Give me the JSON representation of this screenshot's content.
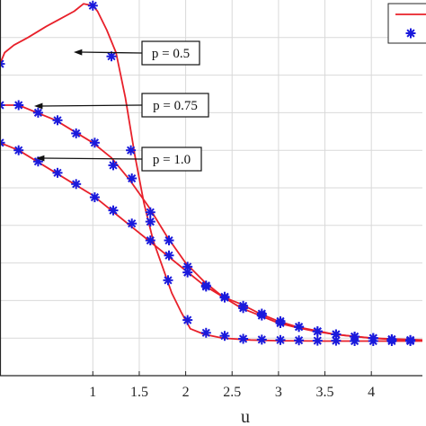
{
  "chart_data": {
    "type": "line",
    "xlabel": "u",
    "ylabel": "",
    "xlim": [
      0.0,
      4.55
    ],
    "ylim": [
      0.0,
      1.0
    ],
    "xticks": [
      1,
      1.5,
      2,
      2.5,
      3,
      3.5,
      4
    ],
    "xtick_labels": [
      "1",
      "1.5",
      "2",
      "2.5",
      "3",
      "3.5",
      "4"
    ],
    "grid": true,
    "legend_position": "top-right",
    "colors": {
      "line": "#e8202a",
      "marker": "#1a1adc",
      "grid": "#d9d9d9",
      "axis": "#262626"
    },
    "series": [
      {
        "label": "p = 0.5",
        "line": [
          [
            0.0,
            0.83
          ],
          [
            0.05,
            0.86
          ],
          [
            0.15,
            0.88
          ],
          [
            0.3,
            0.9
          ],
          [
            0.5,
            0.93
          ],
          [
            0.65,
            0.95
          ],
          [
            0.8,
            0.97
          ],
          [
            0.9,
            0.99
          ],
          [
            1.0,
            0.985
          ],
          [
            1.05,
            0.97
          ],
          [
            1.15,
            0.92
          ],
          [
            1.25,
            0.86
          ],
          [
            1.35,
            0.74
          ],
          [
            1.45,
            0.59
          ],
          [
            1.55,
            0.46
          ],
          [
            1.65,
            0.36
          ],
          [
            1.75,
            0.29
          ],
          [
            1.85,
            0.22
          ],
          [
            1.95,
            0.17
          ],
          [
            2.05,
            0.125
          ],
          [
            2.2,
            0.11
          ],
          [
            2.4,
            0.1
          ],
          [
            2.7,
            0.095
          ],
          [
            3.0,
            0.093
          ],
          [
            3.5,
            0.092
          ],
          [
            4.0,
            0.092
          ],
          [
            4.55,
            0.092
          ]
        ],
        "markers": [
          [
            0.0,
            0.83
          ],
          [
            1.0,
            0.985
          ],
          [
            1.2,
            0.85
          ],
          [
            1.41,
            0.6
          ],
          [
            1.62,
            0.41
          ],
          [
            1.81,
            0.254
          ],
          [
            2.02,
            0.148
          ],
          [
            2.22,
            0.114
          ],
          [
            2.42,
            0.106
          ],
          [
            2.62,
            0.098
          ],
          [
            2.82,
            0.096
          ],
          [
            3.02,
            0.095
          ],
          [
            3.22,
            0.094
          ],
          [
            3.42,
            0.093
          ],
          [
            3.62,
            0.093
          ],
          [
            3.82,
            0.092
          ],
          [
            4.02,
            0.092
          ],
          [
            4.22,
            0.092
          ],
          [
            4.42,
            0.092
          ]
        ]
      },
      {
        "label": "p = 0.75",
        "line": [
          [
            0.0,
            0.72
          ],
          [
            0.2,
            0.72
          ],
          [
            0.4,
            0.7
          ],
          [
            0.6,
            0.68
          ],
          [
            0.8,
            0.65
          ],
          [
            1.0,
            0.62
          ],
          [
            1.2,
            0.58
          ],
          [
            1.4,
            0.52
          ],
          [
            1.6,
            0.45
          ],
          [
            1.8,
            0.37
          ],
          [
            2.0,
            0.3
          ],
          [
            2.2,
            0.25
          ],
          [
            2.4,
            0.21
          ],
          [
            2.6,
            0.18
          ],
          [
            2.8,
            0.16
          ],
          [
            3.0,
            0.14
          ],
          [
            3.2,
            0.128
          ],
          [
            3.4,
            0.118
          ],
          [
            3.6,
            0.11
          ],
          [
            3.8,
            0.105
          ],
          [
            4.0,
            0.1
          ],
          [
            4.2,
            0.098
          ],
          [
            4.55,
            0.095
          ]
        ],
        "markers": [
          [
            0.0,
            0.72
          ],
          [
            0.2,
            0.72
          ],
          [
            0.41,
            0.7
          ],
          [
            0.62,
            0.68
          ],
          [
            0.82,
            0.645
          ],
          [
            1.02,
            0.62
          ],
          [
            1.22,
            0.56
          ],
          [
            1.42,
            0.525
          ],
          [
            1.62,
            0.435
          ],
          [
            1.82,
            0.36
          ],
          [
            2.02,
            0.29
          ],
          [
            2.22,
            0.24
          ],
          [
            2.42,
            0.21
          ],
          [
            2.62,
            0.18
          ],
          [
            2.82,
            0.16
          ],
          [
            3.02,
            0.14
          ],
          [
            3.22,
            0.13
          ],
          [
            3.42,
            0.118
          ],
          [
            3.62,
            0.11
          ],
          [
            3.82,
            0.104
          ],
          [
            4.02,
            0.1
          ],
          [
            4.22,
            0.097
          ],
          [
            4.42,
            0.095
          ]
        ]
      },
      {
        "label": "p = 1.0",
        "line": [
          [
            0.0,
            0.62
          ],
          [
            0.2,
            0.6
          ],
          [
            0.4,
            0.57
          ],
          [
            0.6,
            0.54
          ],
          [
            0.8,
            0.51
          ],
          [
            1.0,
            0.48
          ],
          [
            1.2,
            0.44
          ],
          [
            1.4,
            0.4
          ],
          [
            1.6,
            0.36
          ],
          [
            1.8,
            0.32
          ],
          [
            2.0,
            0.28
          ],
          [
            2.2,
            0.24
          ],
          [
            2.4,
            0.21
          ],
          [
            2.6,
            0.19
          ],
          [
            2.8,
            0.165
          ],
          [
            3.0,
            0.145
          ],
          [
            3.2,
            0.13
          ],
          [
            3.4,
            0.12
          ],
          [
            3.6,
            0.11
          ],
          [
            3.8,
            0.105
          ],
          [
            4.0,
            0.1
          ],
          [
            4.2,
            0.097
          ],
          [
            4.55,
            0.094
          ]
        ],
        "markers": [
          [
            0.0,
            0.62
          ],
          [
            0.2,
            0.6
          ],
          [
            0.41,
            0.57
          ],
          [
            0.62,
            0.54
          ],
          [
            0.82,
            0.51
          ],
          [
            1.02,
            0.475
          ],
          [
            1.22,
            0.44
          ],
          [
            1.42,
            0.405
          ],
          [
            1.62,
            0.36
          ],
          [
            1.82,
            0.32
          ],
          [
            2.02,
            0.275
          ],
          [
            2.22,
            0.237
          ],
          [
            2.42,
            0.208
          ],
          [
            2.62,
            0.186
          ],
          [
            2.82,
            0.165
          ],
          [
            3.02,
            0.145
          ],
          [
            3.22,
            0.13
          ],
          [
            3.42,
            0.118
          ],
          [
            3.62,
            0.11
          ],
          [
            3.82,
            0.104
          ],
          [
            4.02,
            0.1
          ],
          [
            4.22,
            0.097
          ],
          [
            4.42,
            0.094
          ]
        ]
      }
    ],
    "annotations": [
      {
        "text": "p = 0.5",
        "x": 1.45,
        "y": 0.86,
        "series": 0
      },
      {
        "text": "p = 0.75",
        "x": 1.45,
        "y": 0.72,
        "series": 1
      },
      {
        "text": "p = 1.0",
        "x": 1.45,
        "y": 0.6,
        "series": 2
      }
    ]
  }
}
